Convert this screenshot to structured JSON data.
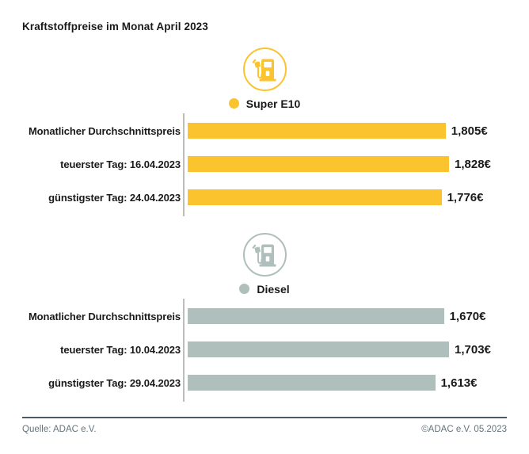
{
  "page": {
    "title": "Kraftstoffpreise im Monat April 2023"
  },
  "colors": {
    "e10": "#FBC42E",
    "diesel": "#AFBFBB",
    "axis": "#BDBDBD",
    "footer_line": "#4C5B64",
    "footer_text": "#64757E",
    "text": "#1A1A1A"
  },
  "chart_data": [
    {
      "type": "bar",
      "orientation": "horizontal",
      "title": "Super E10",
      "icon": "fuel-pump-icon",
      "color": "#FBC42E",
      "unit": "€",
      "categories": [
        "Monatlicher Durchschnittspreis",
        "teuerster Tag: 16.04.2023",
        "günstigster Tag: 24.04.2023"
      ],
      "values": [
        1.805,
        1.828,
        1.776
      ],
      "value_labels": [
        "1,805€",
        "1,828€",
        "1,776€"
      ],
      "legend_position": "top-center",
      "grid": false
    },
    {
      "type": "bar",
      "orientation": "horizontal",
      "title": "Diesel",
      "icon": "fuel-pump-icon",
      "color": "#AFBFBB",
      "unit": "€",
      "categories": [
        "Monatlicher Durchschnittspreis",
        "teuerster Tag: 10.04.2023",
        "günstigster Tag: 29.04.2023"
      ],
      "values": [
        1.67,
        1.703,
        1.613
      ],
      "value_labels": [
        "1,670€",
        "1,703€",
        "1,613€"
      ],
      "legend_position": "top-center",
      "grid": false
    }
  ],
  "footer": {
    "source": "Quelle: ADAC e.V.",
    "copyright": "©ADAC e.V. 05.2023"
  }
}
